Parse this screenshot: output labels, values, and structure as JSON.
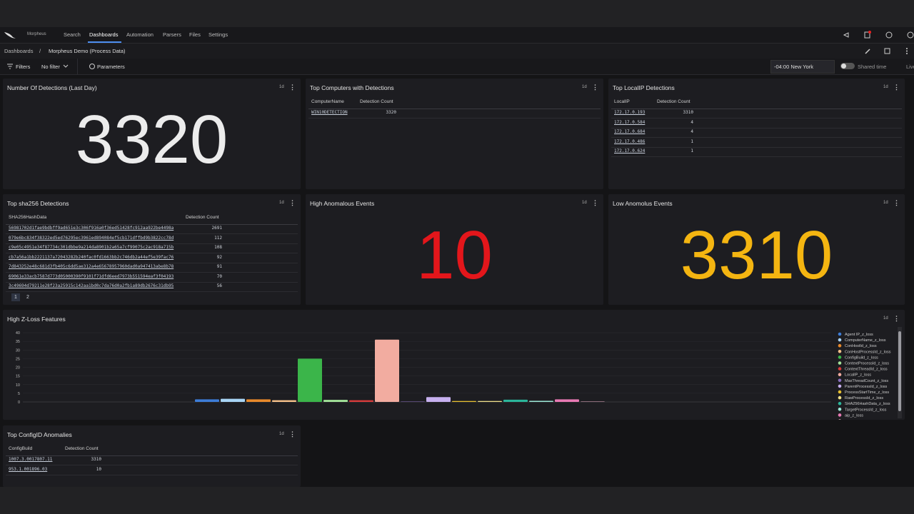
{
  "nav": {
    "brand": "Morpheus",
    "items": [
      "Search",
      "Dashboards",
      "Automation",
      "Parsers",
      "Files",
      "Settings"
    ]
  },
  "breadcrumb": {
    "root": "Dashboards",
    "separator": "/",
    "current": "Morpheus Demo (Process Data)"
  },
  "toolbar": {
    "filters": "Filters",
    "filter": "No filter",
    "parameters": "Parameters",
    "timezone": "-04:00 New York",
    "shared_time": "Shared time",
    "live": "Live"
  },
  "panels": [
    {
      "title": "Number Of Detections (Last Day)",
      "range": "1d",
      "kind": "stat",
      "value": 3320,
      "color": "#ececec"
    },
    {
      "title": "Top Computers with Detections",
      "range": "1d",
      "kind": "table",
      "columns": [
        "ComputerName",
        "Detection Count"
      ],
      "rows": [
        [
          "WIN10DETECTION",
          3320
        ]
      ]
    },
    {
      "title": "Top LocalIP Detections",
      "range": "1d",
      "kind": "table",
      "columns": [
        "LocalIP",
        "Detection Count"
      ],
      "rows": [
        [
          "172.17.0.193",
          3310
        ],
        [
          "172.17.0.584",
          4
        ],
        [
          "172.17.0.684",
          4
        ],
        [
          "172.17.0.486",
          1
        ],
        [
          "172.17.0.624",
          1
        ]
      ]
    },
    {
      "title": "Top sha256 Detections",
      "range": "1d",
      "kind": "table",
      "columns": [
        "SHA256HashData",
        "Detection Count"
      ],
      "rows": [
        [
          "56981702d1fae9bdbff9ad651e3c306f916a0f36ed51428fc912aa922be4498a",
          2691
        ],
        [
          "079e6bc834f38322ed5ed76295ec3961ed894084ef5cb171dffbd9b3822cc78d",
          112
        ],
        [
          "c9e05c4951e34f87734c301dbbe9a214da8901b2a65a7cf99075c2ac918a715b",
          108
        ],
        [
          "cb7a56a1bb2221137a72043282b240fac0fd1663bb2c746db2a44ef5e39fac76",
          92
        ],
        [
          "7d843252e48c681d3fb405c6dd5ae312a4e65678957960dad0a947413abe8b78",
          91
        ],
        [
          "69061e33acb7587d773d05000390f9101f71dfd6eed7973b551594eaf3f04193",
          70
        ],
        [
          "3c49694d79211e28f23a25915c142aa1bd0c7da76d0a2fb1a89db2676c31db95",
          56
        ]
      ],
      "pages": [
        "1",
        "2"
      ]
    },
    {
      "title": "High Anomalous Events",
      "range": "1d",
      "kind": "stat",
      "value": 10,
      "color": "#e3161b"
    },
    {
      "title": "Low Anomolus Events",
      "range": "1d",
      "kind": "stat",
      "value": 3310,
      "color": "#f4b511"
    },
    {
      "title": "High Z-Loss Features",
      "range": "1d",
      "kind": "chart",
      "chart_data": {
        "type": "bar",
        "categories": [
          "Agent IP_z_loss",
          "ComputerName_z_loss",
          "ConHostId_z_loss",
          "ConHostProcessId_z_loss",
          "ConfigBuild_z_loss",
          "ContextProcessId_z_loss",
          "ContextThreadId_z_loss",
          "LocalIP_z_loss",
          "MaxThreadCount_z_loss",
          "ParentProcessId_z_loss",
          "ProcessStartTime_z_loss",
          "RawProcessId_z_loss",
          "SHA256HashData_z_loss",
          "TargetProcessId_z_loss",
          "aip_z_loss",
          null
        ],
        "values": [
          1.5,
          1.8,
          1.5,
          1,
          25,
          1.2,
          1,
          36,
          0.2,
          2.8,
          0.5,
          0.5,
          1.3,
          0.6,
          1.5,
          0.2
        ],
        "colors": [
          "#3d7dd8",
          "#a8d4f5",
          "#e8892b",
          "#f5c08a",
          "#3bb54a",
          "#a3e39a",
          "#d63b3b",
          "#f2aca0",
          "#8a6fc0",
          "#c7b0ef",
          "#e8c030",
          "#f0e08a",
          "#2bb59a",
          "#9de8d8",
          "#e87ab4",
          "#f5b8d0"
        ],
        "ylim": [
          0,
          40
        ],
        "yticks": [
          0,
          5,
          10,
          15,
          20,
          25,
          30,
          35,
          40
        ],
        "grid": true,
        "legend": "right"
      }
    },
    {
      "title": "Top ConfigID Anomalies",
      "range": "1d",
      "kind": "table",
      "columns": [
        "ConfigBuild",
        "Detection Count"
      ],
      "rows": [
        [
          "1007.3.0017807.11",
          3310
        ],
        [
          "953.1.001896.03",
          10
        ]
      ]
    }
  ]
}
